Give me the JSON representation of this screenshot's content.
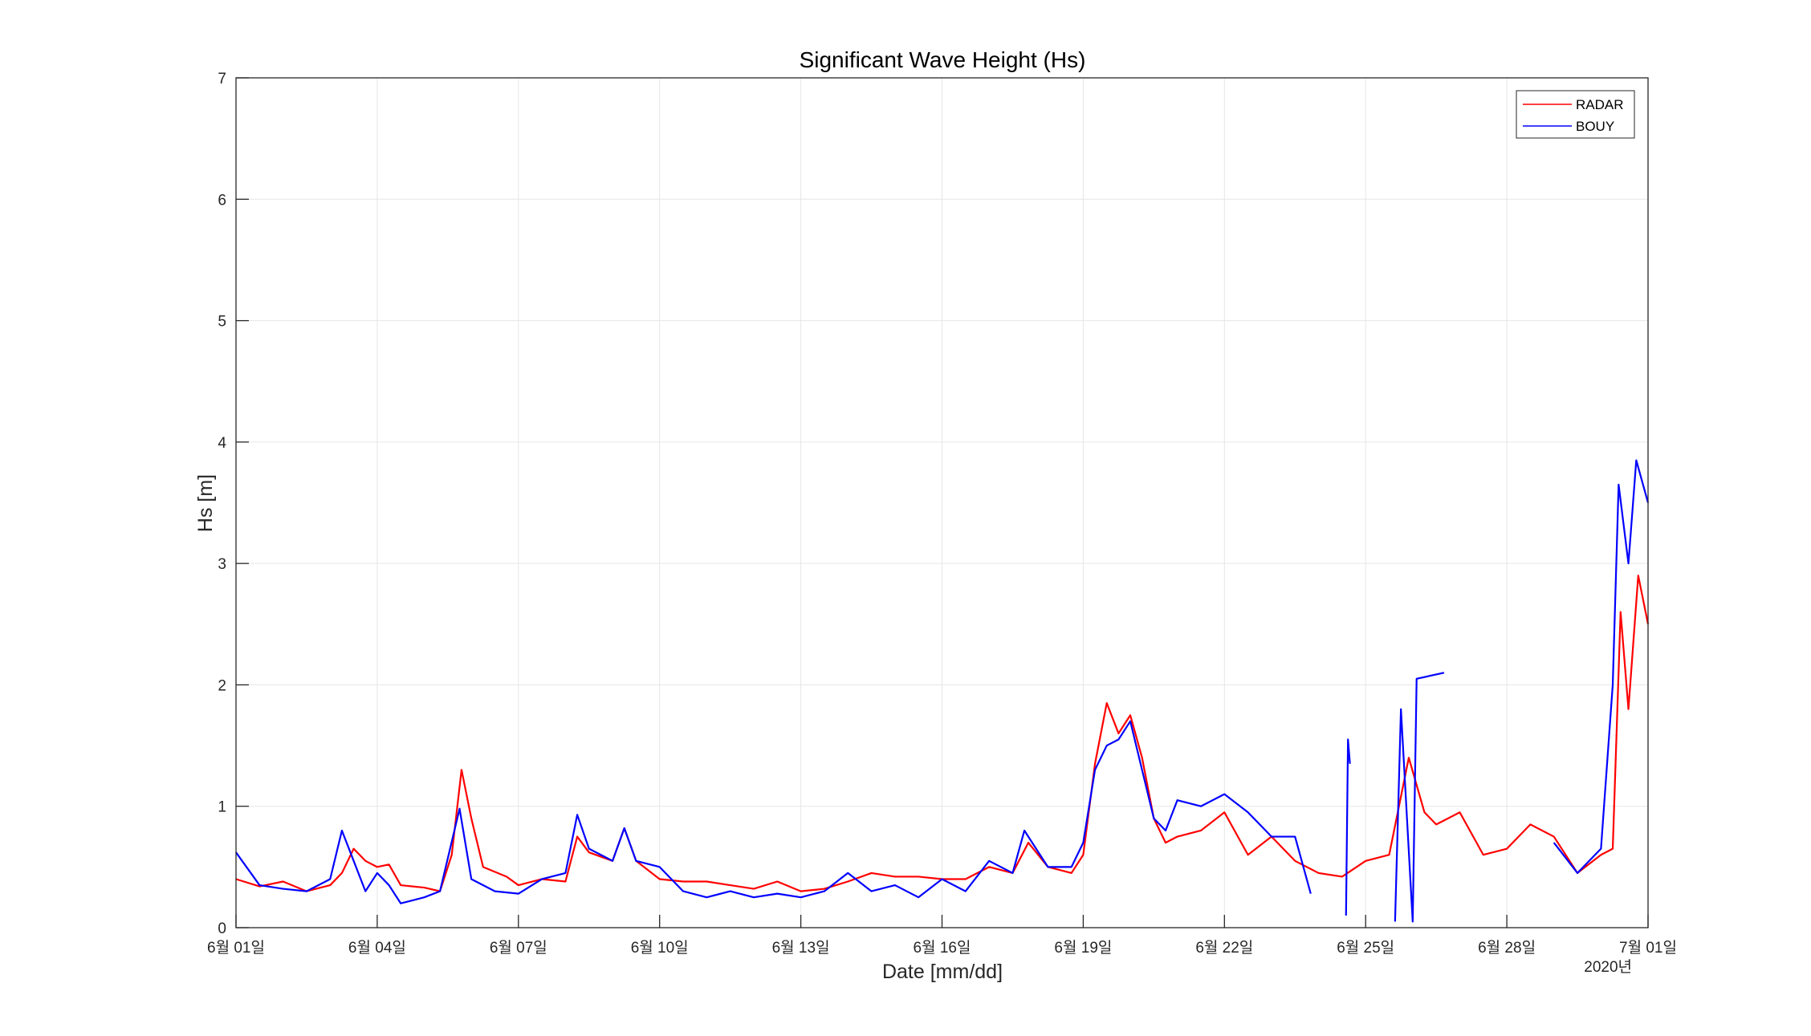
{
  "chart_data": {
    "type": "line",
    "title": "Significant Wave Height (Hs)",
    "xlabel": "Date [mm/dd]",
    "ylabel": "Hs [m]",
    "year_label": "2020년",
    "xlim": [
      "2020-06-01",
      "2020-07-01"
    ],
    "ylim": [
      0,
      7
    ],
    "yticks": [
      0,
      1,
      2,
      3,
      4,
      5,
      6,
      7
    ],
    "xticks": [
      {
        "date": "2020-06-01",
        "label": "6월 01일"
      },
      {
        "date": "2020-06-04",
        "label": "6월 04일"
      },
      {
        "date": "2020-06-07",
        "label": "6월 07일"
      },
      {
        "date": "2020-06-10",
        "label": "6월 10일"
      },
      {
        "date": "2020-06-13",
        "label": "6월 13일"
      },
      {
        "date": "2020-06-16",
        "label": "6월 16일"
      },
      {
        "date": "2020-06-19",
        "label": "6월 19일"
      },
      {
        "date": "2020-06-22",
        "label": "6월 22일"
      },
      {
        "date": "2020-06-25",
        "label": "6월 25일"
      },
      {
        "date": "2020-06-28",
        "label": "6월 28일"
      },
      {
        "date": "2020-07-01",
        "label": "7월 01일"
      }
    ],
    "grid": true,
    "legend_position": "top-right",
    "series": [
      {
        "name": "RADAR",
        "color": "#ff0000",
        "points": [
          [
            "2020-06-01 00:00",
            0.4
          ],
          [
            "2020-06-01 12:00",
            0.34
          ],
          [
            "2020-06-02 00:00",
            0.38
          ],
          [
            "2020-06-02 12:00",
            0.3
          ],
          [
            "2020-06-03 00:00",
            0.35
          ],
          [
            "2020-06-03 06:00",
            0.45
          ],
          [
            "2020-06-03 12:00",
            0.65
          ],
          [
            "2020-06-03 18:00",
            0.55
          ],
          [
            "2020-06-04 00:00",
            0.5
          ],
          [
            "2020-06-04 06:00",
            0.52
          ],
          [
            "2020-06-04 12:00",
            0.35
          ],
          [
            "2020-06-05 00:00",
            0.33
          ],
          [
            "2020-06-05 08:00",
            0.3
          ],
          [
            "2020-06-05 14:00",
            0.6
          ],
          [
            "2020-06-05 19:00",
            1.3
          ],
          [
            "2020-06-06 00:00",
            0.9
          ],
          [
            "2020-06-06 06:00",
            0.5
          ],
          [
            "2020-06-06 18:00",
            0.42
          ],
          [
            "2020-06-07 00:00",
            0.35
          ],
          [
            "2020-06-07 12:00",
            0.4
          ],
          [
            "2020-06-08 00:00",
            0.38
          ],
          [
            "2020-06-08 06:00",
            0.75
          ],
          [
            "2020-06-08 12:00",
            0.62
          ],
          [
            "2020-06-09 00:00",
            0.55
          ],
          [
            "2020-06-09 06:00",
            0.82
          ],
          [
            "2020-06-09 12:00",
            0.55
          ],
          [
            "2020-06-10 00:00",
            0.4
          ],
          [
            "2020-06-10 12:00",
            0.38
          ],
          [
            "2020-06-11 00:00",
            0.38
          ],
          [
            "2020-06-11 12:00",
            0.35
          ],
          [
            "2020-06-12 00:00",
            0.32
          ],
          [
            "2020-06-12 12:00",
            0.38
          ],
          [
            "2020-06-13 00:00",
            0.3
          ],
          [
            "2020-06-13 12:00",
            0.32
          ],
          [
            "2020-06-14 00:00",
            0.38
          ],
          [
            "2020-06-14 12:00",
            0.45
          ],
          [
            "2020-06-15 00:00",
            0.42
          ],
          [
            "2020-06-15 12:00",
            0.42
          ],
          [
            "2020-06-16 00:00",
            0.4
          ],
          [
            "2020-06-16 12:00",
            0.4
          ],
          [
            "2020-06-17 00:00",
            0.5
          ],
          [
            "2020-06-17 12:00",
            0.45
          ],
          [
            "2020-06-17 20:00",
            0.7
          ],
          [
            "2020-06-18 06:00",
            0.5
          ],
          [
            "2020-06-18 18:00",
            0.45
          ],
          [
            "2020-06-19 00:00",
            0.6
          ],
          [
            "2020-06-19 06:00",
            1.35
          ],
          [
            "2020-06-19 12:00",
            1.85
          ],
          [
            "2020-06-19 18:00",
            1.6
          ],
          [
            "2020-06-20 00:00",
            1.75
          ],
          [
            "2020-06-20 06:00",
            1.4
          ],
          [
            "2020-06-20 12:00",
            0.9
          ],
          [
            "2020-06-20 18:00",
            0.7
          ],
          [
            "2020-06-21 00:00",
            0.75
          ],
          [
            "2020-06-21 12:00",
            0.8
          ],
          [
            "2020-06-22 00:00",
            0.95
          ],
          [
            "2020-06-22 12:00",
            0.6
          ],
          [
            "2020-06-23 00:00",
            0.75
          ],
          [
            "2020-06-23 12:00",
            0.55
          ],
          [
            "2020-06-24 00:00",
            0.45
          ],
          [
            "2020-06-24 12:00",
            0.42
          ],
          [
            "2020-06-25 00:00",
            0.55
          ],
          [
            "2020-06-25 12:00",
            0.6
          ],
          [
            "2020-06-25 22:00",
            1.4
          ],
          [
            "2020-06-26 06:00",
            0.95
          ],
          [
            "2020-06-26 12:00",
            0.85
          ],
          [
            "2020-06-27 00:00",
            0.95
          ],
          [
            "2020-06-27 12:00",
            0.6
          ],
          [
            "2020-06-28 00:00",
            0.65
          ],
          [
            "2020-06-28 12:00",
            0.85
          ],
          [
            "2020-06-29 00:00",
            0.75
          ],
          [
            "2020-06-29 12:00",
            0.45
          ],
          [
            "2020-06-30 00:00",
            0.6
          ],
          [
            "2020-06-30 06:00",
            0.65
          ],
          [
            "2020-06-30 10:00",
            2.6
          ],
          [
            "2020-06-30 14:00",
            1.8
          ],
          [
            "2020-06-30 19:00",
            2.9
          ],
          [
            "2020-07-01 00:00",
            2.5
          ]
        ]
      },
      {
        "name": "BOUY",
        "color": "#0000ff",
        "points": [
          [
            "2020-06-01 00:00",
            0.62
          ],
          [
            "2020-06-01 12:00",
            0.35
          ],
          [
            "2020-06-02 00:00",
            0.32
          ],
          [
            "2020-06-02 12:00",
            0.3
          ],
          [
            "2020-06-03 00:00",
            0.4
          ],
          [
            "2020-06-03 06:00",
            0.8
          ],
          [
            "2020-06-03 12:00",
            0.55
          ],
          [
            "2020-06-03 18:00",
            0.3
          ],
          [
            "2020-06-04 00:00",
            0.45
          ],
          [
            "2020-06-04 06:00",
            0.35
          ],
          [
            "2020-06-04 12:00",
            0.2
          ],
          [
            "2020-06-05 00:00",
            0.25
          ],
          [
            "2020-06-05 08:00",
            0.3
          ],
          [
            "2020-06-05 18:00",
            0.98
          ],
          [
            "2020-06-06 00:00",
            0.4
          ],
          [
            "2020-06-06 12:00",
            0.3
          ],
          [
            "2020-06-07 00:00",
            0.28
          ],
          [
            "2020-06-07 12:00",
            0.4
          ],
          [
            "2020-06-08 00:00",
            0.45
          ],
          [
            "2020-06-08 06:00",
            0.93
          ],
          [
            "2020-06-08 12:00",
            0.65
          ],
          [
            "2020-06-09 00:00",
            0.55
          ],
          [
            "2020-06-09 06:00",
            0.82
          ],
          [
            "2020-06-09 12:00",
            0.55
          ],
          [
            "2020-06-10 00:00",
            0.5
          ],
          [
            "2020-06-10 12:00",
            0.3
          ],
          [
            "2020-06-11 00:00",
            0.25
          ],
          [
            "2020-06-11 12:00",
            0.3
          ],
          [
            "2020-06-12 00:00",
            0.25
          ],
          [
            "2020-06-12 12:00",
            0.28
          ],
          [
            "2020-06-13 00:00",
            0.25
          ],
          [
            "2020-06-13 12:00",
            0.3
          ],
          [
            "2020-06-14 00:00",
            0.45
          ],
          [
            "2020-06-14 12:00",
            0.3
          ],
          [
            "2020-06-15 00:00",
            0.35
          ],
          [
            "2020-06-15 12:00",
            0.25
          ],
          [
            "2020-06-16 00:00",
            0.4
          ],
          [
            "2020-06-16 12:00",
            0.3
          ],
          [
            "2020-06-17 00:00",
            0.55
          ],
          [
            "2020-06-17 12:00",
            0.45
          ],
          [
            "2020-06-17 18:00",
            0.8
          ],
          [
            "2020-06-18 06:00",
            0.5
          ],
          [
            "2020-06-18 18:00",
            0.5
          ],
          [
            "2020-06-19 00:00",
            0.7
          ],
          [
            "2020-06-19 06:00",
            1.3
          ],
          [
            "2020-06-19 12:00",
            1.5
          ],
          [
            "2020-06-19 18:00",
            1.55
          ],
          [
            "2020-06-20 00:00",
            1.7
          ],
          [
            "2020-06-20 06:00",
            1.3
          ],
          [
            "2020-06-20 12:00",
            0.9
          ],
          [
            "2020-06-20 18:00",
            0.8
          ],
          [
            "2020-06-21 00:00",
            1.05
          ],
          [
            "2020-06-21 12:00",
            1.0
          ],
          [
            "2020-06-22 00:00",
            1.1
          ],
          [
            "2020-06-22 12:00",
            0.95
          ],
          [
            "2020-06-23 00:00",
            0.75
          ],
          [
            "2020-06-23 12:00",
            0.75
          ],
          [
            "2020-06-23 20:00",
            0.28
          ]
        ],
        "segments": [
          [
            [
              "2020-06-24 14:00",
              0.1
            ],
            [
              "2020-06-24 15:00",
              1.55
            ],
            [
              "2020-06-24 16:00",
              1.35
            ]
          ],
          [
            [
              "2020-06-25 15:00",
              0.05
            ],
            [
              "2020-06-25 18:00",
              1.8
            ],
            [
              "2020-06-26 00:00",
              0.05
            ],
            [
              "2020-06-26 02:00",
              2.05
            ],
            [
              "2020-06-26 16:00",
              2.1
            ]
          ],
          [
            [
              "2020-06-29 00:00",
              0.7
            ],
            [
              "2020-06-29 12:00",
              0.45
            ],
            [
              "2020-06-30 00:00",
              0.65
            ],
            [
              "2020-06-30 06:00",
              2.0
            ],
            [
              "2020-06-30 09:00",
              3.65
            ],
            [
              "2020-06-30 14:00",
              3.0
            ],
            [
              "2020-06-30 18:00",
              3.85
            ],
            [
              "2020-07-01 00:00",
              3.5
            ]
          ]
        ]
      }
    ]
  }
}
